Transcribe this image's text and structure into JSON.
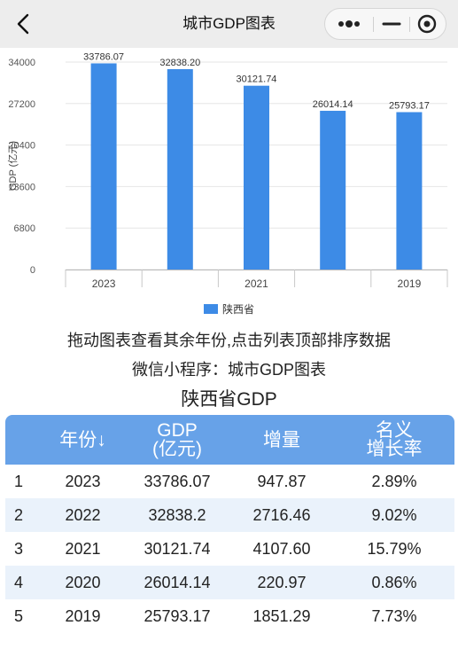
{
  "nav": {
    "title": "城市GDP图表",
    "icons": [
      "chevron-left-icon",
      "more-dots-icon",
      "minimize-icon",
      "close-target-icon"
    ]
  },
  "chart_data": {
    "type": "bar",
    "categories": [
      "2023",
      "2022",
      "2021",
      "2020",
      "2019"
    ],
    "tick_labels_shown": [
      "2023",
      "",
      "2021",
      "",
      "2019"
    ],
    "series": [
      {
        "name": "陕西省",
        "values": [
          33786.07,
          32838.2,
          30121.74,
          26014.14,
          25793.17
        ]
      }
    ],
    "data_labels": [
      "33786.07",
      "32838.20",
      "30121.74",
      "26014.14",
      "25793.17"
    ],
    "ylabel": "GDP (亿元)",
    "xlabel": "",
    "ylim": [
      0,
      34000
    ],
    "yticks": [
      0,
      6800,
      13600,
      20400,
      27200,
      34000
    ],
    "grid": true,
    "legend_position": "bottom",
    "color": "#3d8be6"
  },
  "hints": {
    "drag": "拖动图表查看其余年份,点击列表顶部排序数据",
    "mini_program": "微信小程序：城市GDP图表"
  },
  "table": {
    "title": "陕西省GDP",
    "headers": {
      "year": "年份↓",
      "gdp_line1": "GDP",
      "gdp_line2": "(亿元)",
      "increase": "增量",
      "growth_line1": "名义",
      "growth_line2": "增长率"
    },
    "header_color": "#67a2e8",
    "alt_row_color": "#eaf2fb",
    "rows": [
      {
        "rank": "1",
        "year": "2023",
        "gdp": "33786.07",
        "increase": "947.87",
        "growth": "2.89%"
      },
      {
        "rank": "2",
        "year": "2022",
        "gdp": "32838.2",
        "increase": "2716.46",
        "growth": "9.02%"
      },
      {
        "rank": "3",
        "year": "2021",
        "gdp": "30121.74",
        "increase": "4107.60",
        "growth": "15.79%"
      },
      {
        "rank": "4",
        "year": "2020",
        "gdp": "26014.14",
        "increase": "220.97",
        "growth": "0.86%"
      },
      {
        "rank": "5",
        "year": "2019",
        "gdp": "25793.17",
        "increase": "1851.29",
        "growth": "7.73%"
      }
    ]
  }
}
